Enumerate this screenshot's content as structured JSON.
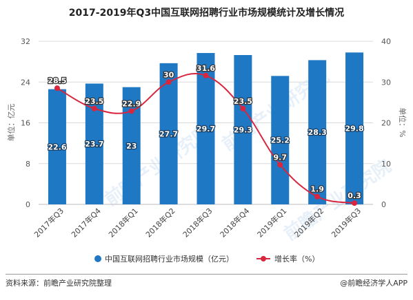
{
  "title": "2017-2019年Q3中国互联网招聘行业市场规模统计及增长情况",
  "source": "资料来源：前瞻产业研究院整理",
  "brand": "@前瞻经济学人APP",
  "watermark": "前瞻产业研究院",
  "colors": {
    "bar": "#1f78c4",
    "line": "#d7263d",
    "grid": "#d9d9d9"
  },
  "chart_data": {
    "type": "bar",
    "categories": [
      "2017年Q3",
      "2017年Q4",
      "2018年Q1",
      "2018年Q2",
      "2018年Q3",
      "2018年Q4",
      "2019年Q1",
      "2019年Q2",
      "2019年Q3"
    ],
    "series": [
      {
        "name": "中国互联网招聘行业市场规模（亿元）",
        "type": "bar",
        "axis": "left",
        "values": [
          22.6,
          23.7,
          23,
          27.7,
          29.7,
          29.3,
          25.2,
          28.3,
          29.8
        ]
      },
      {
        "name": "增长率（%）",
        "type": "line",
        "axis": "right",
        "values": [
          28.5,
          23.5,
          22.9,
          30,
          31.6,
          23.5,
          9.7,
          1.9,
          0.3
        ]
      }
    ],
    "ylabel_left": "单位：亿元",
    "ylabel_right": "单位：%",
    "ylim_left": [
      0,
      32
    ],
    "ylim_right": [
      0,
      40
    ],
    "yticks_left": [
      0,
      8,
      16,
      24,
      32
    ],
    "yticks_right": [
      0,
      10,
      20,
      30,
      40
    ],
    "grid": true,
    "legend": "bottom"
  }
}
